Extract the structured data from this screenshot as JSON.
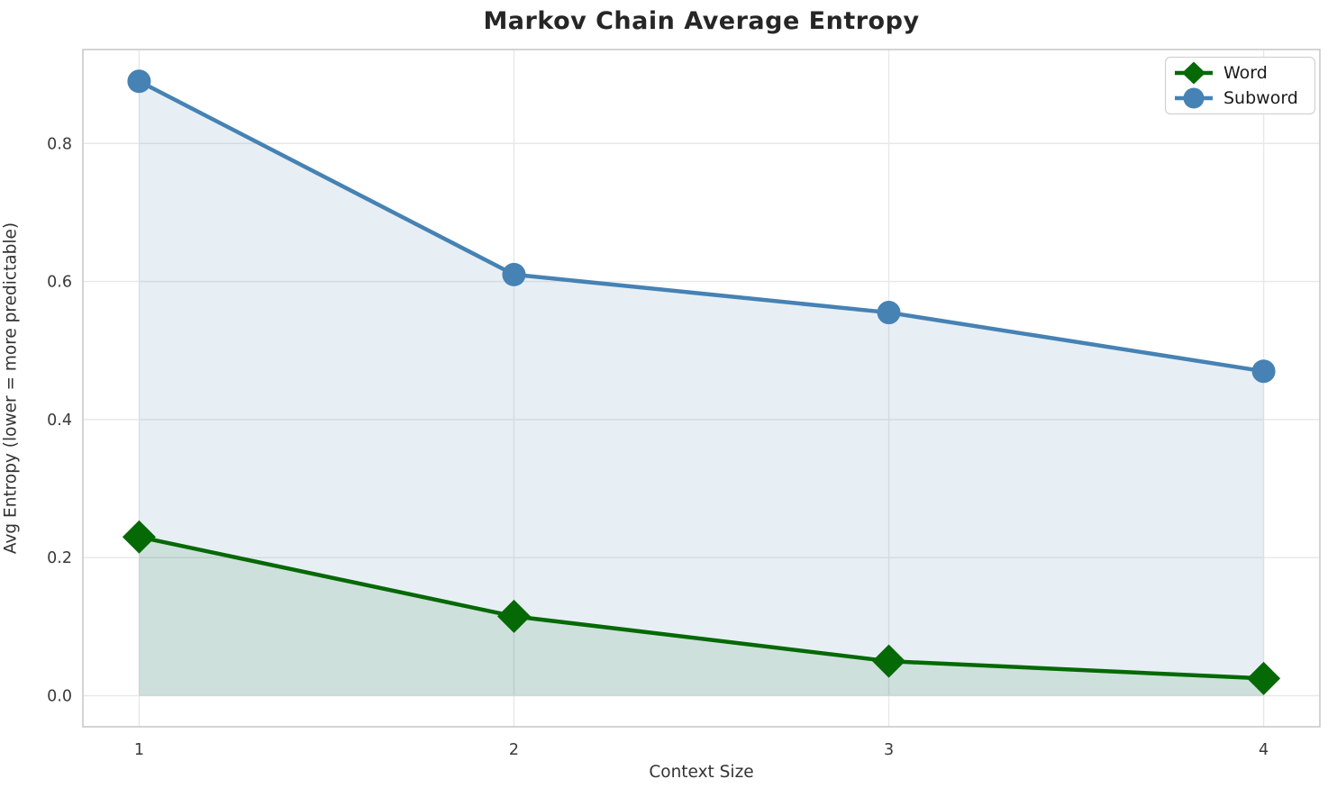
{
  "chart_data": {
    "type": "line",
    "title": "Markov Chain Average Entropy",
    "xlabel": "Context Size",
    "ylabel": "Avg Entropy (lower = more predictable)",
    "x": [
      1,
      2,
      3,
      4
    ],
    "series": [
      {
        "name": "Word",
        "values": [
          0.23,
          0.115,
          0.05,
          0.025
        ],
        "color": "#056905",
        "fill": "rgba(0, 100, 0, 0.11)",
        "marker": "diamond"
      },
      {
        "name": "Subword",
        "values": [
          0.89,
          0.61,
          0.555,
          0.47
        ],
        "color": "#4682b4",
        "fill": "rgba(70, 130, 180, 0.13)",
        "marker": "circle"
      }
    ],
    "fill_baseline": 0,
    "xlim": [
      0.85,
      4.15
    ],
    "ylim": [
      -0.045,
      0.936
    ],
    "xtick_values": [
      1,
      2,
      3,
      4
    ],
    "xtick_labels": [
      "1",
      "2",
      "3",
      "4"
    ],
    "ytick_values": [
      0.0,
      0.2,
      0.4,
      0.6,
      0.8
    ],
    "ytick_labels": [
      "0.0",
      "0.2",
      "0.4",
      "0.6",
      "0.8"
    ],
    "grid": true,
    "legend_position": "upper right",
    "style": {
      "grid_color": "#e8e8e8",
      "spine_color": "#c9c9c9",
      "tick_color": "#3a3a3a",
      "title_color": "#262626",
      "background": "#ffffff"
    }
  }
}
